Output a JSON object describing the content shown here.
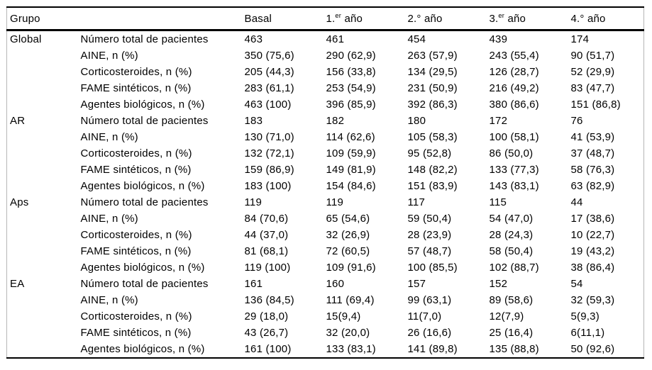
{
  "table": {
    "columns": [
      {
        "label": "Grupo"
      },
      {
        "label": ""
      },
      {
        "label": "Basal"
      },
      {
        "pre": "1.",
        "sup": "er",
        "post": " año"
      },
      {
        "label": "2.° año"
      },
      {
        "pre": "3.",
        "sup": "er",
        "post": " año"
      },
      {
        "label": "4.° año"
      }
    ],
    "groups": [
      {
        "name": "Global",
        "rows": [
          {
            "label": "Número total de pacientes",
            "values": [
              "463",
              "461",
              "454",
              "439",
              "174"
            ]
          },
          {
            "label": "AINE, n (%)",
            "values": [
              "350 (75,6)",
              "290 (62,9)",
              "263 (57,9)",
              "243 (55,4)",
              "90 (51,7)"
            ]
          },
          {
            "label": "Corticosteroides, n (%)",
            "values": [
              "205 (44,3)",
              "156 (33,8)",
              "134 (29,5)",
              "126 (28,7)",
              "52 (29,9)"
            ]
          },
          {
            "label": "FAME sintéticos, n (%)",
            "values": [
              "283 (61,1)",
              "253 (54,9)",
              "231 (50,9)",
              "216 (49,2)",
              "83 (47,7)"
            ]
          },
          {
            "label": "Agentes biológicos, n (%)",
            "values": [
              "463 (100)",
              "396 (85,9)",
              "392 (86,3)",
              "380 (86,6)",
              "151 (86,8)"
            ]
          }
        ]
      },
      {
        "name": "AR",
        "rows": [
          {
            "label": "Número total de pacientes",
            "values": [
              "183",
              "182",
              "180",
              "172",
              "76"
            ]
          },
          {
            "label": "AINE, n (%)",
            "values": [
              "130 (71,0)",
              "114 (62,6)",
              "105 (58,3)",
              "100 (58,1)",
              "41 (53,9)"
            ]
          },
          {
            "label": "Corticosteroides, n (%)",
            "values": [
              "132 (72,1)",
              "109 (59,9)",
              "95 (52,8)",
              "86 (50,0)",
              "37 (48,7)"
            ]
          },
          {
            "label": "FAME sintéticos, n (%)",
            "values": [
              "159 (86,9)",
              "149 (81,9)",
              "148 (82,2)",
              "133 (77,3)",
              "58 (76,3)"
            ]
          },
          {
            "label": "Agentes biológicos, n (%)",
            "values": [
              "183 (100)",
              "154 (84,6)",
              "151 (83,9)",
              "143 (83,1)",
              "63 (82,9)"
            ]
          }
        ]
      },
      {
        "name": "Aps",
        "rows": [
          {
            "label": "Número total de pacientes",
            "values": [
              "119",
              "119",
              "117",
              "115",
              "44"
            ]
          },
          {
            "label": "AINE, n (%)",
            "values": [
              "84 (70,6)",
              "65 (54,6)",
              "59 (50,4)",
              "54 (47,0)",
              "17 (38,6)"
            ]
          },
          {
            "label": "Corticosteroides, n (%)",
            "values": [
              "44 (37,0)",
              "32 (26,9)",
              "28 (23,9)",
              "28 (24,3)",
              "10 (22,7)"
            ]
          },
          {
            "label": "FAME sintéticos, n (%)",
            "values": [
              "81 (68,1)",
              "72 (60,5)",
              "57 (48,7)",
              "58 (50,4)",
              "19 (43,2)"
            ]
          },
          {
            "label": "Agentes biológicos, n (%)",
            "values": [
              "119 (100)",
              "109 (91,6)",
              "100 (85,5)",
              "102 (88,7)",
              "38 (86,4)"
            ]
          }
        ]
      },
      {
        "name": "EA",
        "rows": [
          {
            "label": "Número total de pacientes",
            "values": [
              "161",
              "160",
              "157",
              "152",
              "54"
            ]
          },
          {
            "label": "AINE, n (%)",
            "values": [
              "136 (84,5)",
              "111 (69,4)",
              "99 (63,1)",
              "89 (58,6)",
              "32 (59,3)"
            ]
          },
          {
            "label": "Corticosteroides, n (%)",
            "values": [
              "29 (18,0)",
              "15(9,4)",
              "11(7,0)",
              "12(7,9)",
              "5(9,3)"
            ]
          },
          {
            "label": "FAME sintéticos, n (%)",
            "values": [
              "43 (26,7)",
              "32 (20,0)",
              "26 (16,6)",
              "25 (16,4)",
              "6(11,1)"
            ]
          },
          {
            "label": "Agentes biológicos, n (%)",
            "values": [
              "161 (100)",
              "133 (83,1)",
              "141 (89,8)",
              "135 (88,8)",
              "50 (92,6)"
            ]
          }
        ]
      }
    ]
  }
}
